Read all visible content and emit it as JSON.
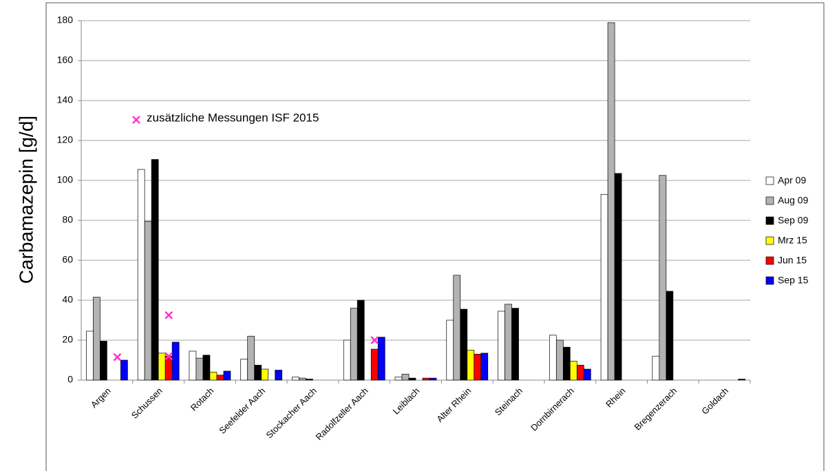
{
  "chart_data": {
    "type": "bar",
    "y_label": "Carbamazepin  [g/d]",
    "categories": [
      "Argen",
      "Schussen",
      "Rotach",
      "Seefelder Aach",
      "Stockacher Aach",
      "Radolfzeller Aach",
      "Leiblach",
      "Alter Rhein",
      "Steinach",
      "Dornbirnerach",
      "Rhein",
      "Bregenzerach",
      "Goldach"
    ],
    "series": [
      {
        "name": "Apr 09",
        "color": "#ffffff",
        "values": [
          24.5,
          105.5,
          14.5,
          10.5,
          1.5,
          20,
          1.5,
          30,
          34.5,
          22.5,
          93,
          12,
          null
        ]
      },
      {
        "name": "Aug 09",
        "color": "#b3b3b3",
        "values": [
          41.5,
          79.5,
          11,
          22,
          1,
          36,
          3,
          52.5,
          38,
          20,
          179,
          102.5,
          null
        ]
      },
      {
        "name": "Sep 09",
        "color": "#000000",
        "values": [
          19.5,
          110.5,
          12.5,
          7.5,
          0.5,
          40,
          1,
          35.5,
          36,
          16.5,
          103.5,
          44.5,
          null
        ]
      },
      {
        "name": "Mrz 15",
        "color": "#ffff00",
        "values": [
          null,
          13.5,
          4,
          5.5,
          null,
          null,
          null,
          15,
          null,
          9.5,
          null,
          null,
          null
        ]
      },
      {
        "name": "Jun 15",
        "color": "#ff0000",
        "values": [
          null,
          12,
          2.5,
          null,
          null,
          15.5,
          1,
          13,
          null,
          7.5,
          null,
          null,
          null
        ]
      },
      {
        "name": "Sep 15",
        "color": "#0000ff",
        "values": [
          10,
          19,
          4.5,
          5,
          null,
          21.5,
          1,
          13.5,
          null,
          5.5,
          null,
          null,
          0.5
        ]
      }
    ],
    "markers": {
      "label": "zusätzliche Messungen ISF 2015",
      "color": "#ff33cc",
      "values": [
        [
          11.5
        ],
        [
          32.5,
          12
        ],
        [],
        [],
        [],
        [
          20
        ],
        [],
        [],
        [],
        [],
        [],
        [],
        []
      ]
    },
    "ylim": [
      0,
      180
    ],
    "yticks": [
      0,
      20,
      40,
      60,
      80,
      100,
      120,
      140,
      160,
      180
    ],
    "grid": true
  }
}
